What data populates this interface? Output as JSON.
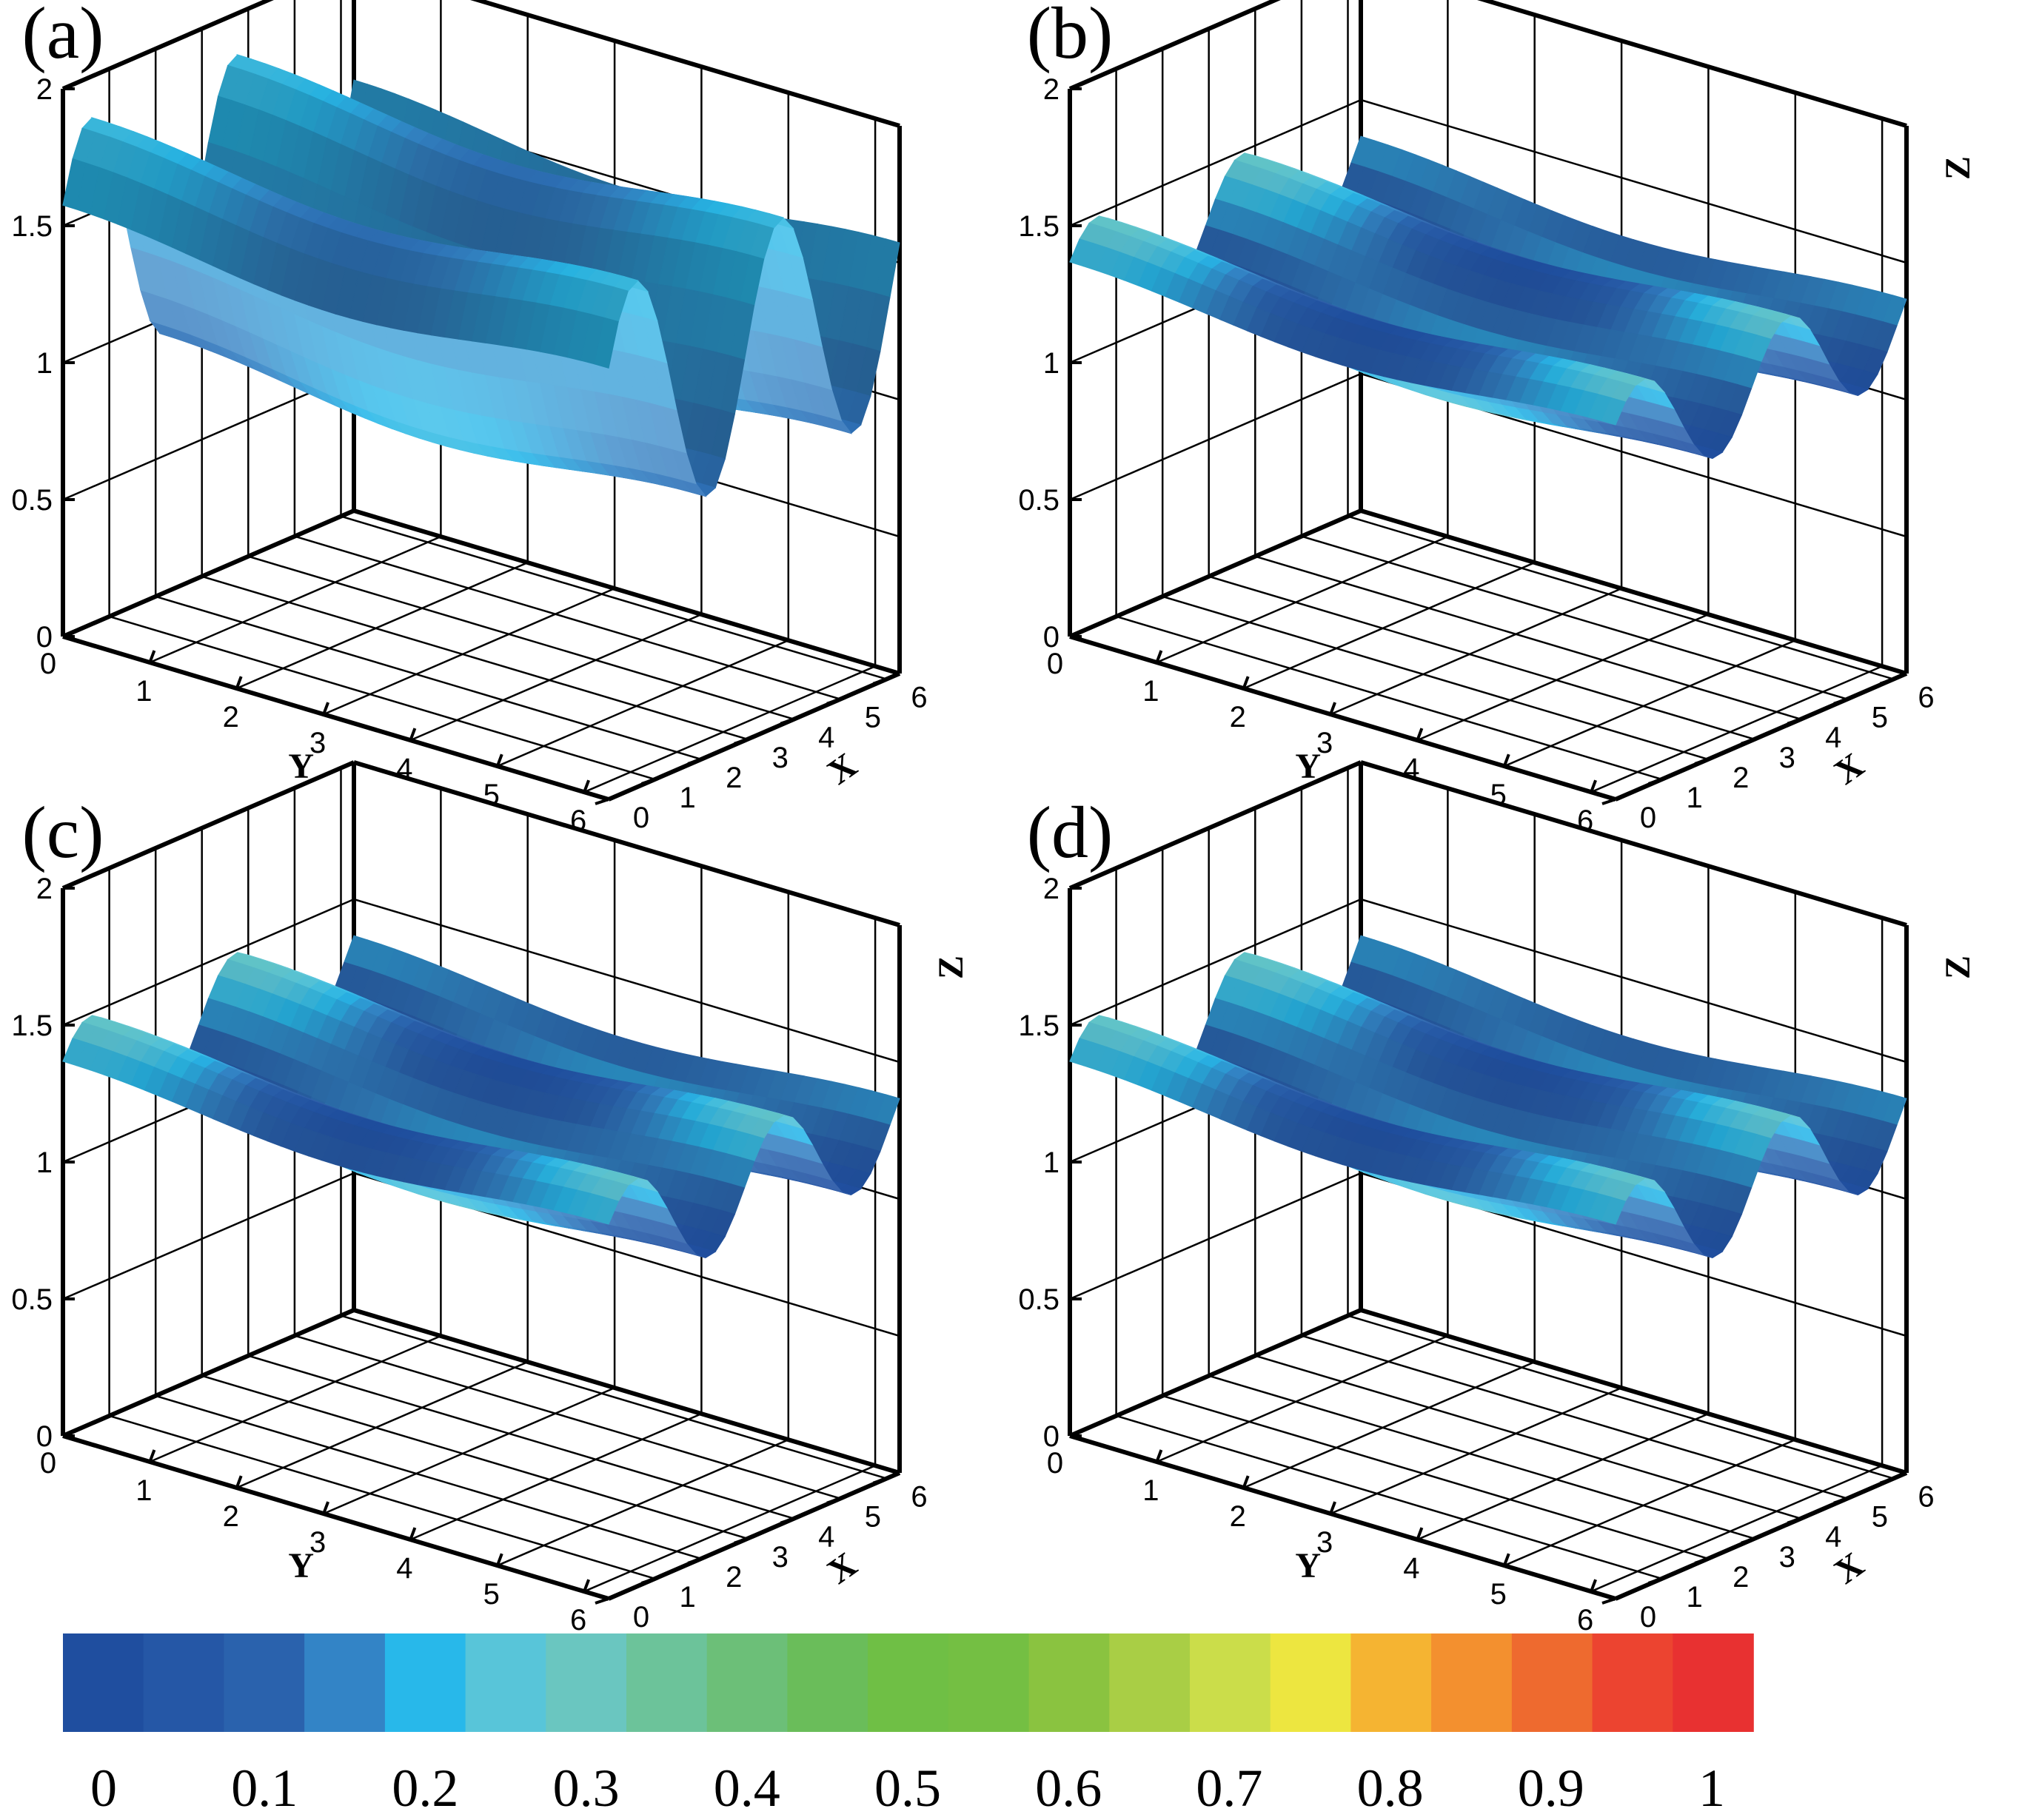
{
  "chart_data": {
    "type": "surface-3d",
    "colormap": {
      "ticks": [
        "0",
        "0.1",
        "0.2",
        "0.3",
        "0.4",
        "0.5",
        "0.6",
        "0.7",
        "0.8",
        "0.9",
        "1"
      ],
      "range": [
        0,
        1
      ],
      "colors": [
        "#1f4e9f",
        "#2557a6",
        "#2a62ad",
        "#3384c6",
        "#28b8ea",
        "#58c5d9",
        "#6ac6c0",
        "#6cc39a",
        "#6cbf78",
        "#6abd5a",
        "#6fbf45",
        "#74bf43",
        "#8ac340",
        "#a9ce45",
        "#cbdd4a",
        "#ede640",
        "#f5b432",
        "#f3902f",
        "#ee6a2f",
        "#ec4430",
        "#e83131"
      ]
    },
    "panels": [
      {
        "label": "(a)",
        "xlabel": "X",
        "ylabel": "Y",
        "zlabel": "",
        "x_ticks": [
          "0",
          "1",
          "2",
          "3",
          "4",
          "5",
          "6"
        ],
        "y_ticks": [
          "0",
          "1",
          "2",
          "3",
          "4",
          "5",
          "6"
        ],
        "z_ticks": [
          "0",
          "0.5",
          "1",
          "1.5",
          "2"
        ],
        "xlim": [
          0,
          6.28
        ],
        "ylim": [
          0,
          6.28
        ],
        "zlim": [
          0,
          2
        ],
        "surface": {
          "base": 1.35,
          "x_amp": 0.45,
          "y_amp": 0.05,
          "field_min": 0.12,
          "field_max": 0.22
        }
      },
      {
        "label": "(b)",
        "xlabel": "X",
        "ylabel": "Y",
        "zlabel": "Z",
        "x_ticks": [
          "0",
          "1",
          "2",
          "3",
          "4",
          "5",
          "6"
        ],
        "y_ticks": [
          "0",
          "1",
          "2",
          "3",
          "4",
          "5",
          "6"
        ],
        "z_ticks": [
          "0",
          "0.5",
          "1",
          "1.5",
          "2"
        ],
        "xlim": [
          0,
          6.28
        ],
        "ylim": [
          0,
          6.28
        ],
        "zlim": [
          0,
          2
        ],
        "surface": {
          "base": 1.25,
          "x_amp": 0.2,
          "y_amp": 0.04,
          "field_min": 0.0,
          "field_max": 0.28
        }
      },
      {
        "label": "(c)",
        "xlabel": "X",
        "ylabel": "Y",
        "zlabel": "Z",
        "x_ticks": [
          "0",
          "1",
          "2",
          "3",
          "4",
          "5",
          "6"
        ],
        "y_ticks": [
          "0",
          "1",
          "2",
          "3",
          "4",
          "5",
          "6"
        ],
        "z_ticks": [
          "0",
          "0.5",
          "1",
          "1.5",
          "2"
        ],
        "xlim": [
          0,
          6.28
        ],
        "ylim": [
          0,
          6.28
        ],
        "zlim": [
          0,
          2
        ],
        "surface": {
          "base": 1.25,
          "x_amp": 0.2,
          "y_amp": 0.04,
          "field_min": 0.0,
          "field_max": 0.28
        }
      },
      {
        "label": "(d)",
        "xlabel": "X",
        "ylabel": "Y",
        "zlabel": "Z",
        "x_ticks": [
          "0",
          "1",
          "2",
          "3",
          "4",
          "5",
          "6"
        ],
        "y_ticks": [
          "0",
          "1",
          "2",
          "3",
          "4",
          "5",
          "6"
        ],
        "z_ticks": [
          "0",
          "0.5",
          "1",
          "1.5",
          "2"
        ],
        "xlim": [
          0,
          6.28
        ],
        "ylim": [
          0,
          6.28
        ],
        "zlim": [
          0,
          2
        ],
        "surface": {
          "base": 1.25,
          "x_amp": 0.2,
          "y_amp": 0.04,
          "field_min": 0.0,
          "field_max": 0.28
        }
      }
    ]
  }
}
